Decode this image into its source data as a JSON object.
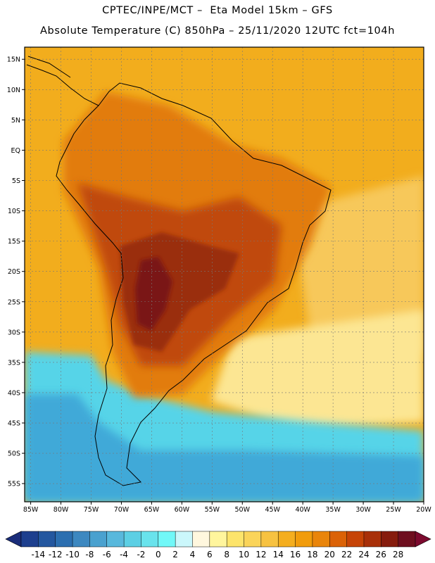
{
  "header": {
    "line1": "CPTEC/INPE/MCT –  Eta Model 15km – GFS",
    "line2": "Absolute Temperature (C) 850hPa – 25/11/2020 12UTC fct=104h"
  },
  "axes": {
    "lat_range": [
      -58,
      17
    ],
    "lon_range": [
      -86,
      -20
    ],
    "lat_labels": [
      "15N",
      "10N",
      "5N",
      "EQ",
      "5S",
      "10S",
      "15S",
      "20S",
      "25S",
      "30S",
      "35S",
      "40S",
      "45S",
      "50S",
      "55S"
    ],
    "lat_values": [
      15,
      10,
      5,
      0,
      -5,
      -10,
      -15,
      -20,
      -25,
      -30,
      -35,
      -40,
      -45,
      -50,
      -55
    ],
    "lon_labels": [
      "85W",
      "80W",
      "75W",
      "70W",
      "65W",
      "60W",
      "55W",
      "50W",
      "45W",
      "40W",
      "35W",
      "30W",
      "25W",
      "20W"
    ],
    "lon_values": [
      -85,
      -80,
      -75,
      -70,
      -65,
      -60,
      -55,
      -50,
      -45,
      -40,
      -35,
      -30,
      -25,
      -20
    ]
  },
  "colorbar": {
    "labels": [
      "-14",
      "-12",
      "-10",
      "-8",
      "-6",
      "-4",
      "-2",
      "0",
      "2",
      "4",
      "6",
      "8",
      "10",
      "12",
      "14",
      "16",
      "18",
      "20",
      "22",
      "24",
      "26",
      "28"
    ],
    "colors": [
      "#1d3f8e",
      "#24579f",
      "#2c6fb0",
      "#3d88c0",
      "#4aa1cf",
      "#58b8dc",
      "#5ccfe4",
      "#69e3ec",
      "#71f8f8",
      "#cbf7fb",
      "#fff7de",
      "#fff59d",
      "#fde46b",
      "#fad45a",
      "#f7c241",
      "#f4ae1f",
      "#f19c0c",
      "#e9850b",
      "#db6207",
      "#c64407",
      "#a83009",
      "#861c0d",
      "#6e0f1f"
    ],
    "low_arrow_color": "#1a2d7a",
    "high_arrow_color": "#7c0a2e"
  },
  "field_colors": {
    "ocean_north": "#f2ad1d",
    "ocean_mid": "#f7c85a",
    "ocean_pale": "#fce693",
    "ocean_south_cyan": "#56d4e8",
    "ocean_deep": "#3fa9d8",
    "coast_line": "#000000",
    "land_warm": "#e27b0f",
    "land_hot": "#c04a09",
    "land_hotter": "#9a2d0b",
    "land_core": "#7a1818"
  }
}
